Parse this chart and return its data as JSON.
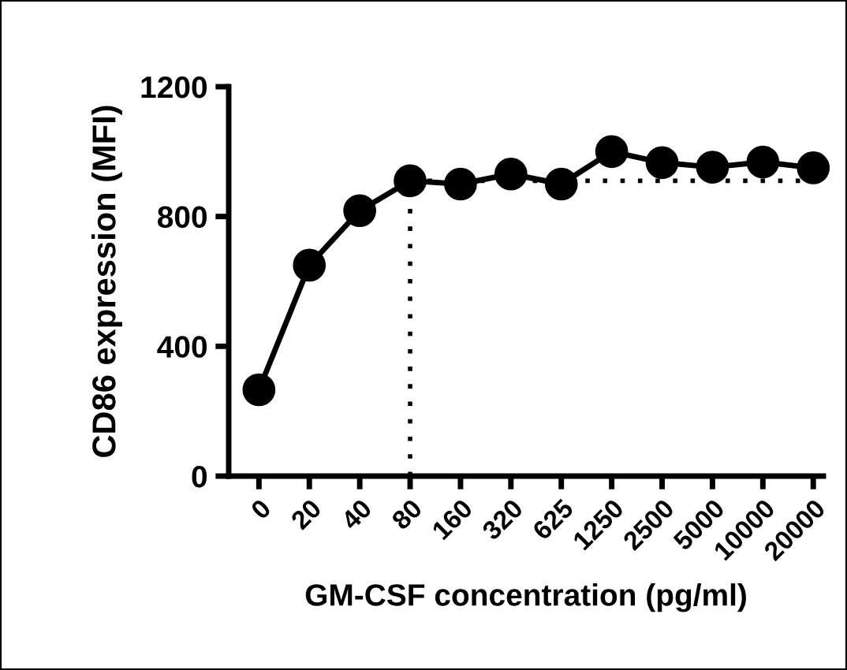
{
  "chart_data": {
    "type": "line",
    "xlabel": "GM-CSF concentration (pg/ml)",
    "ylabel": "CD86 expression (MFI)",
    "categories": [
      "0",
      "20",
      "40",
      "80",
      "160",
      "320",
      "625",
      "1250",
      "2500",
      "5000",
      "10000",
      "20000"
    ],
    "series": [
      {
        "color": "#000000",
        "values": [
          266,
          650,
          818,
          910,
          900,
          931,
          900,
          1000,
          966,
          952,
          968,
          950
        ]
      }
    ],
    "ylim": [
      0,
      1200
    ],
    "yticks": [
      0,
      400,
      800,
      1200
    ],
    "marker": "circle",
    "line_style": "solid",
    "grid": false,
    "ref_lines": [
      {
        "axis": "x",
        "value": "80",
        "line_style": "dotted",
        "color": "#000000"
      },
      {
        "axis": "y",
        "value": 910,
        "line_style": "dotted",
        "color": "#000000"
      }
    ]
  }
}
